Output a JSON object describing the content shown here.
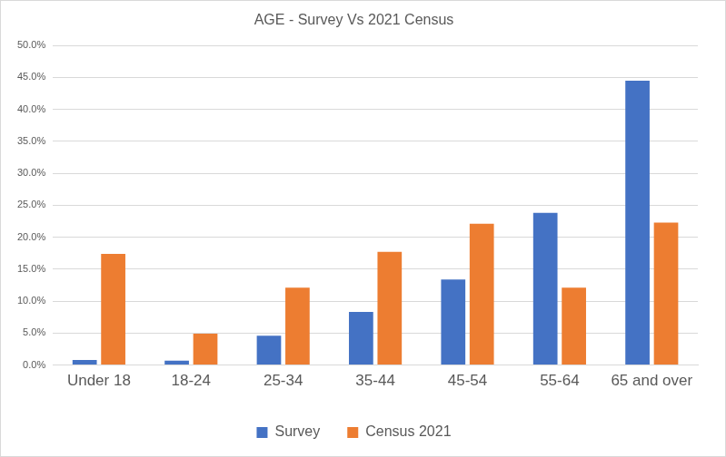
{
  "chart_data": {
    "type": "bar",
    "title": "AGE - Survey Vs 2021 Census",
    "categories": [
      "Under 18",
      "18-24",
      "25-34",
      "35-44",
      "45-54",
      "55-64",
      "65 and over"
    ],
    "series": [
      {
        "name": "Survey",
        "color": "#4472c4",
        "values": [
          0.8,
          0.7,
          4.6,
          8.3,
          13.4,
          23.8,
          44.5
        ]
      },
      {
        "name": "Census 2021",
        "color": "#ed7d31",
        "values": [
          17.4,
          4.9,
          12.1,
          17.7,
          22.1,
          12.1,
          22.3
        ]
      }
    ],
    "ylim": [
      0,
      50
    ],
    "yticks": [
      {
        "value": 0,
        "label": "0.0%"
      },
      {
        "value": 5,
        "label": "5.0%"
      },
      {
        "value": 10,
        "label": "10.0%"
      },
      {
        "value": 15,
        "label": "15.0%"
      },
      {
        "value": 20,
        "label": "20.0%"
      },
      {
        "value": 25,
        "label": "25.0%"
      },
      {
        "value": 30,
        "label": "30.0%"
      },
      {
        "value": 35,
        "label": "35.0%"
      },
      {
        "value": 40,
        "label": "40.0%"
      },
      {
        "value": 45,
        "label": "45.0%"
      },
      {
        "value": 50,
        "label": "50.0%"
      }
    ],
    "grid": true,
    "legend": "bottom"
  }
}
